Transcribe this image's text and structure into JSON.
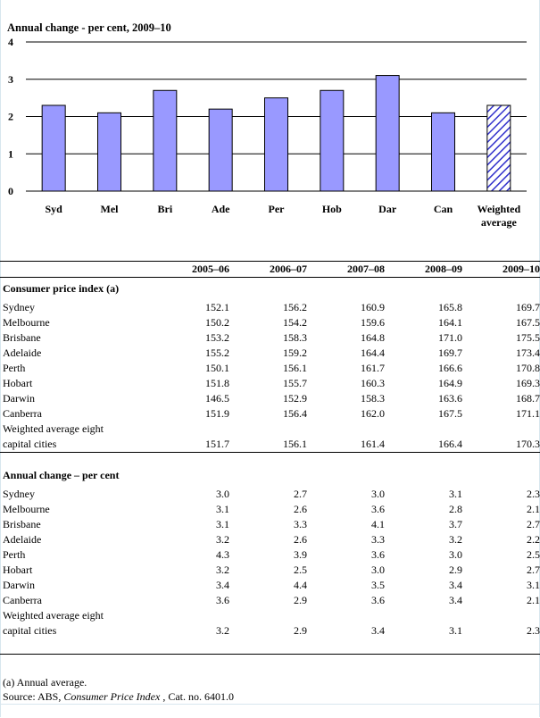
{
  "chart_data": {
    "type": "bar",
    "title": "Annual change - per cent, 2009–10",
    "categories": [
      "Syd",
      "Mel",
      "Bri",
      "Ade",
      "Per",
      "Hob",
      "Dar",
      "Can",
      "Weighted average"
    ],
    "category_lines": [
      [
        "Syd"
      ],
      [
        "Mel"
      ],
      [
        "Bri"
      ],
      [
        "Ade"
      ],
      [
        "Per"
      ],
      [
        "Hob"
      ],
      [
        "Dar"
      ],
      [
        "Can"
      ],
      [
        "Weighted",
        "average"
      ]
    ],
    "values": [
      2.3,
      2.1,
      2.7,
      2.2,
      2.5,
      2.7,
      3.1,
      2.1,
      2.3
    ],
    "ylim": [
      0,
      4
    ],
    "yticks": [
      "0",
      "1",
      "2",
      "3",
      "4"
    ],
    "grid": true,
    "colors": {
      "bar": "#9999ff",
      "weighted_hatch": "#3333cc",
      "outline": "#000000"
    }
  },
  "table": {
    "years": [
      "2005–06",
      "2006–07",
      "2007–08",
      "2008–09",
      "2009–10"
    ],
    "cpi": {
      "title": "Consumer price index (a)",
      "rows": [
        {
          "name": "Sydney",
          "values": [
            "152.1",
            "156.2",
            "160.9",
            "165.8",
            "169.7"
          ]
        },
        {
          "name": "Melbourne",
          "values": [
            "150.2",
            "154.2",
            "159.6",
            "164.1",
            "167.5"
          ]
        },
        {
          "name": "Brisbane",
          "values": [
            "153.2",
            "158.3",
            "164.8",
            "171.0",
            "175.5"
          ]
        },
        {
          "name": "Adelaide",
          "values": [
            "155.2",
            "159.2",
            "164.4",
            "169.7",
            "173.4"
          ]
        },
        {
          "name": "Perth",
          "values": [
            "150.1",
            "156.1",
            "161.7",
            "166.6",
            "170.8"
          ]
        },
        {
          "name": "Hobart",
          "values": [
            "151.8",
            "155.7",
            "160.3",
            "164.9",
            "169.3"
          ]
        },
        {
          "name": "Darwin",
          "values": [
            "146.5",
            "152.9",
            "158.3",
            "163.6",
            "168.7"
          ]
        },
        {
          "name": "Canberra",
          "values": [
            "151.9",
            "156.4",
            "162.0",
            "167.5",
            "171.1"
          ]
        }
      ],
      "weighted_line1": "Weighted average eight",
      "weighted_line2": "capital cities",
      "weighted_values": [
        "151.7",
        "156.1",
        "161.4",
        "166.4",
        "170.3"
      ]
    },
    "change": {
      "title": "Annual change – per cent",
      "rows": [
        {
          "name": "Sydney",
          "values": [
            "3.0",
            "2.7",
            "3.0",
            "3.1",
            "2.3"
          ]
        },
        {
          "name": "Melbourne",
          "values": [
            "3.1",
            "2.6",
            "3.6",
            "2.8",
            "2.1"
          ]
        },
        {
          "name": "Brisbane",
          "values": [
            "3.1",
            "3.3",
            "4.1",
            "3.7",
            "2.7"
          ]
        },
        {
          "name": "Adelaide",
          "values": [
            "3.2",
            "2.6",
            "3.3",
            "3.2",
            "2.2"
          ]
        },
        {
          "name": "Perth",
          "values": [
            "4.3",
            "3.9",
            "3.6",
            "3.0",
            "2.5"
          ]
        },
        {
          "name": "Hobart",
          "values": [
            "3.2",
            "2.5",
            "3.0",
            "2.9",
            "2.7"
          ]
        },
        {
          "name": "Darwin",
          "values": [
            "3.4",
            "4.4",
            "3.5",
            "3.4",
            "3.1"
          ]
        },
        {
          "name": "Canberra",
          "values": [
            "3.6",
            "2.9",
            "3.6",
            "3.4",
            "2.1"
          ]
        }
      ],
      "weighted_line1": "Weighted average eight",
      "weighted_line2": "capital cities",
      "weighted_values": [
        "3.2",
        "2.9",
        "3.4",
        "3.1",
        "2.3"
      ]
    }
  },
  "notes": {
    "footnote": "(a) Annual average.",
    "source_prefix": "Source: ABS, ",
    "source_title": "Consumer Price Index",
    "source_suffix": " , Cat. no. 6401.0"
  }
}
